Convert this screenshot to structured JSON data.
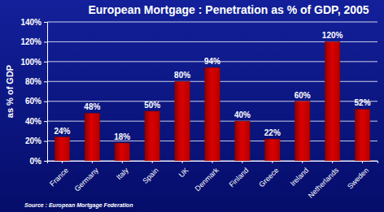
{
  "chart_data": {
    "type": "bar",
    "title": "European Mortgage : Penetration as % of GDP, 2005",
    "y_label": "as % of GDP",
    "categories": [
      "France",
      "Germany",
      "Italy",
      "Spain",
      "UK",
      "Denmark",
      "Finland",
      "Greece",
      "Ireland",
      "Netherlands",
      "Sweden"
    ],
    "values": [
      24,
      48,
      18,
      50,
      80,
      94,
      40,
      22,
      60,
      120,
      52
    ],
    "value_labels": [
      "24%",
      "48%",
      "18%",
      "50%",
      "80%",
      "94%",
      "40%",
      "22%",
      "60%",
      "120%",
      "52%"
    ],
    "color": "#dd0000",
    "ylim": [
      0,
      140
    ],
    "yticks": [
      {
        "value": 0,
        "label": "0%"
      },
      {
        "value": 20,
        "label": "20%"
      },
      {
        "value": 40,
        "label": "40%"
      },
      {
        "value": 60,
        "label": "60%"
      },
      {
        "value": 80,
        "label": "80%"
      },
      {
        "value": 100,
        "label": "100%"
      },
      {
        "value": 120,
        "label": "120%"
      },
      {
        "value": 140,
        "label": "140%"
      }
    ],
    "grid": true,
    "data_labels": true,
    "annotations": [
      "Source : European Mortgage Federation"
    ]
  }
}
